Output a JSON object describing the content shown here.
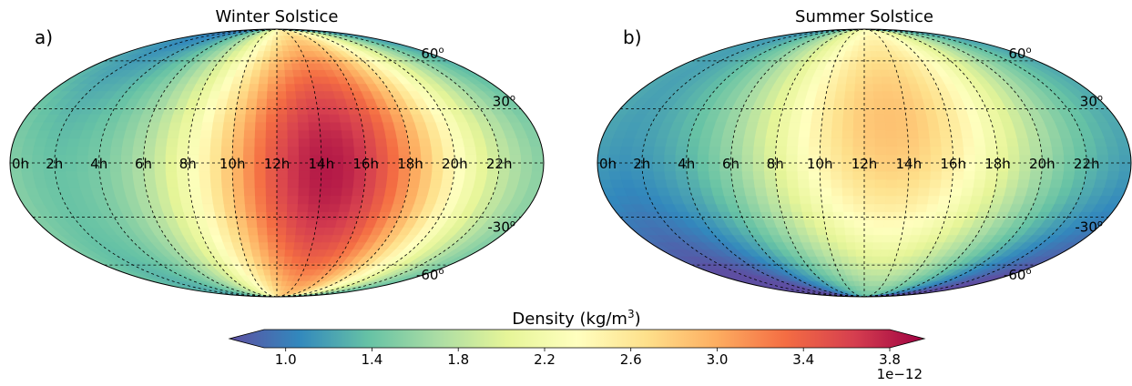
{
  "chart_data": {
    "type": "heatmap",
    "projection": "mollweide",
    "colormap": "Spectral_r",
    "colorbar": {
      "label_prefix": "Density (kg/m",
      "label_sup": "3",
      "label_suffix": ")",
      "min": 0.9,
      "max": 3.8,
      "ticks": [
        "1.0",
        "1.4",
        "1.8",
        "2.2",
        "2.6",
        "3.0",
        "3.4",
        "3.8"
      ],
      "tick_values": [
        1.0,
        1.4,
        1.8,
        2.2,
        2.6,
        3.0,
        3.4,
        3.8
      ],
      "offset_text": "1e−12",
      "extend": "both"
    },
    "panels": [
      {
        "label": "a)",
        "title": "Winter Solstice",
        "lon_labels": [
          "0h",
          "2h",
          "4h",
          "6h",
          "8h",
          "10h",
          "12h",
          "14h",
          "16h",
          "18h",
          "20h",
          "22h"
        ],
        "lat_labels": [
          {
            "lat": 60,
            "text": "60",
            "sup": "o"
          },
          {
            "lat": 30,
            "text": "30",
            "sup": "o"
          },
          {
            "lat": -30,
            "text": "-30",
            "sup": "o"
          },
          {
            "lat": -60,
            "text": "-60",
            "sup": "o"
          }
        ],
        "field": {
          "peak_hour": 14.3,
          "peak_lat": 0,
          "peak_value": 3.8,
          "base_value": 1.45,
          "lat_spread": 80,
          "hour_spread": 4.2,
          "north_bias": -0.15
        }
      },
      {
        "label": "b)",
        "title": "Summer Solstice",
        "lon_labels": [
          "0h",
          "2h",
          "4h",
          "6h",
          "8h",
          "10h",
          "12h",
          "14h",
          "16h",
          "18h",
          "20h",
          "22h"
        ],
        "lat_labels": [
          {
            "lat": 60,
            "text": "60",
            "sup": "o"
          },
          {
            "lat": 30,
            "text": "30",
            "sup": "o"
          },
          {
            "lat": -30,
            "text": "-30",
            "sup": "o"
          },
          {
            "lat": -60,
            "text": "-60",
            "sup": "o"
          }
        ],
        "field": {
          "peak_hour": 13.2,
          "peak_lat": 15,
          "peak_value": 2.85,
          "base_value": 1.2,
          "lat_spread": 75,
          "hour_spread": 4.6,
          "north_bias": 0.35
        }
      }
    ]
  }
}
